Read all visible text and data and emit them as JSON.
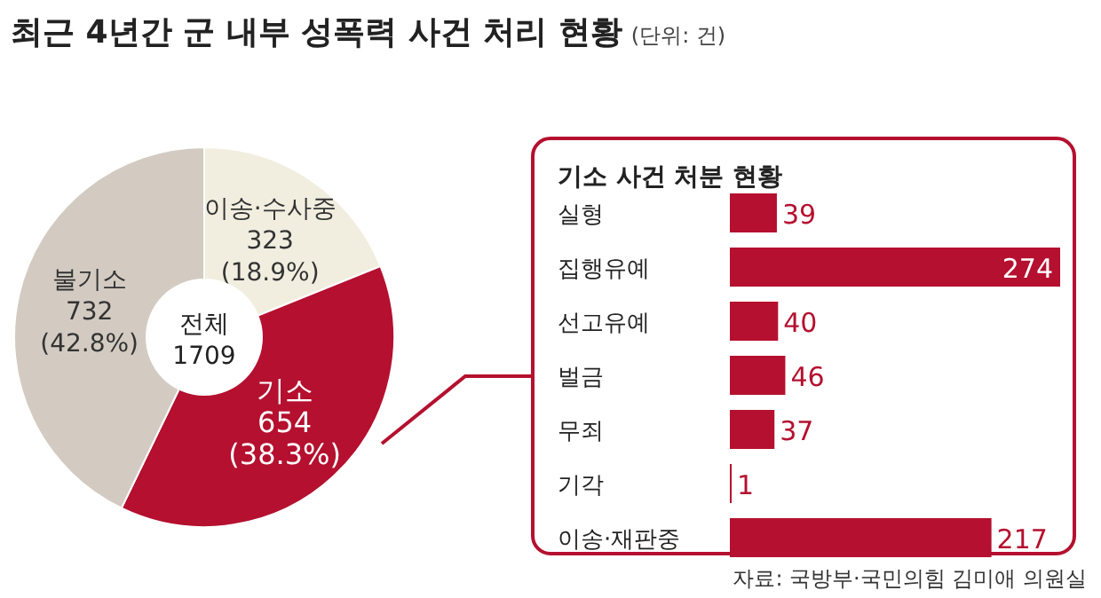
{
  "chart_data": [
    {
      "type": "donut",
      "title": "최근 4년간 군 내부 성폭력 사건 처리 현황",
      "subtitle": "(단위: 건)",
      "categories": [
        "이송·수사중",
        "기소",
        "불기소"
      ],
      "values": [
        323,
        654,
        732
      ],
      "colors": [
        "#f1eee0",
        "#b5102f",
        "#d3cbc2"
      ],
      "value_labels": [
        "323 (18.9%)",
        "654 (38.3%)",
        "732 (42.8%)"
      ],
      "annotations": [
        "전체",
        "1709",
        "자료: 국방부·국민의힘 김미애 의원실"
      ]
    },
    {
      "type": "bar",
      "orientation": "horizontal",
      "title": "기소 사건 처분 현황",
      "categories": [
        "실형",
        "집행유예",
        "선고유예",
        "벌금",
        "무죄",
        "기각",
        "이송·재판중"
      ],
      "values": [
        39,
        274,
        40,
        46,
        37,
        1,
        217
      ],
      "color": "#b5102f",
      "data_labels": true
    }
  ]
}
